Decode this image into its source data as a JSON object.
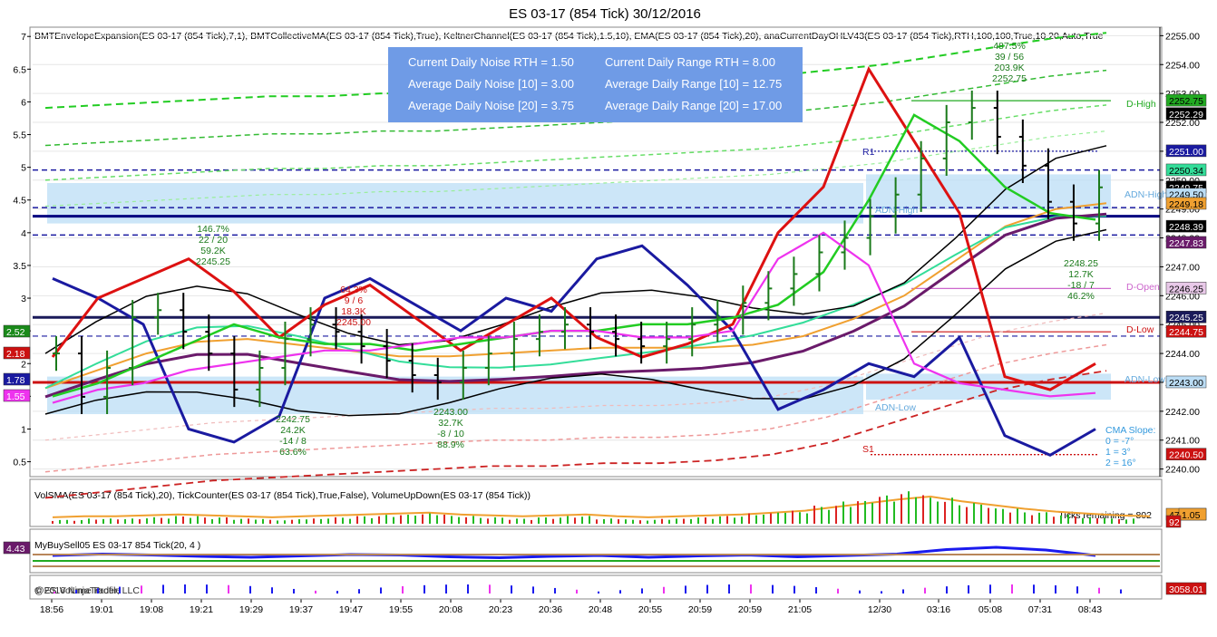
{
  "window_title": "ES 03-17 (854 Tick)  30/12/2016",
  "main_panel": {
    "indicator_header": "BMTEnvelopeExpansion(ES 03-17 (854 Tick),7,1), BMTCollectiveMA(ES 03-17 (854 Tick),True), KeltnerChannel(ES 03-17 (854 Tick),1.5,10), EMA(ES 03-17 (854 Tick),20), anaCurrentDayOHLV43(ES 03-17 (854 Tick),RTH,100,100,True,10,20,Auto,True",
    "noise_box": {
      "bg_color": "#6f9be6",
      "lines": [
        "Current Daily Noise RTH = 1.50",
        "Average Daily Noise [10] = 3.00",
        "Average Daily Noise [20] = 3.75",
        "Current Daily Range RTH = 8.00",
        "Average Daily Range [10] = 12.75",
        "Average Daily Range [20] = 17.00"
      ]
    },
    "annotations": [
      {
        "lines": [
          "146.7%",
          "22 / 20",
          "59.2K",
          "2245.25"
        ],
        "color": "#1a7a1a"
      },
      {
        "lines": [
          "64.3%",
          "9 / 6",
          "18.3K",
          "2245.00"
        ],
        "color": "#cc1111"
      },
      {
        "lines": [
          "2242.75",
          "24.2K",
          "-14 / 8",
          "63.6%"
        ],
        "color": "#1a7a1a"
      },
      {
        "lines": [
          "2243.00",
          "32.7K",
          "-8 / 10",
          "88.9%"
        ],
        "color": "#1a7a1a"
      },
      {
        "lines": [
          "487.5%",
          "39 / 56",
          "203.9K",
          "2252.75"
        ],
        "color": "#1a7a1a"
      },
      {
        "lines": [
          "2248.25",
          "12.7K",
          "-18 / 7",
          "46.2%"
        ],
        "color": "#1a7a1a"
      }
    ],
    "level_labels": [
      {
        "text": "R1",
        "color": "#1a1aa0"
      },
      {
        "text": "S1",
        "color": "#cc1111"
      },
      {
        "text": "D-High",
        "color": "#22aa22"
      },
      {
        "text": "D-Open",
        "color": "#cc66cc"
      },
      {
        "text": "D-Low",
        "color": "#cc1111"
      },
      {
        "text": "ADN-High",
        "color": "#66aadd"
      },
      {
        "text": "ADN-Low",
        "color": "#66aadd"
      },
      {
        "text": "ADN-High",
        "color": "#66aadd"
      },
      {
        "text": "ADN-Low",
        "color": "#66aadd"
      }
    ],
    "cma_slope": [
      "CMA Slope:",
      "0 = -7°",
      "1 = 3°",
      "2 = 16°"
    ],
    "cma_slope_color": "#3399dd",
    "left_axis_ticks": [
      "7",
      "6.5",
      "6",
      "5.5",
      "5",
      "4.5",
      "4",
      "3.5",
      "3",
      "2.5",
      "2",
      "1.5",
      "1",
      "0.5"
    ],
    "left_badges": [
      {
        "text": "2.52",
        "color": "#1a8a1a"
      },
      {
        "text": "2.18",
        "color": "#cc1111"
      },
      {
        "text": "1.78",
        "color": "#1a1aa0"
      },
      {
        "text": "1.55",
        "color": "#ee33ee"
      }
    ],
    "right_axis_ticks": [
      "2255.00",
      "2254.00",
      "2253.00",
      "2252.00",
      "2251.00",
      "2250.00",
      "2249.00",
      "2248.00",
      "2247.00",
      "2246.00",
      "2245.00",
      "2244.00",
      "2243.00",
      "2242.00",
      "2241.00",
      "2240.00"
    ],
    "right_badges": [
      {
        "text": "2252.75",
        "color": "#22aa22",
        "fg": "#000000"
      },
      {
        "text": "2252.29",
        "color": "#000000",
        "fg": "#ffffff"
      },
      {
        "text": "2251.00",
        "color": "#1a1aa0",
        "fg": "#ffffff"
      },
      {
        "text": "2250.34",
        "color": "#33dd99",
        "fg": "#000000"
      },
      {
        "text": "2249.75",
        "color": "#000000",
        "fg": "#ffffff"
      },
      {
        "text": "2249.50",
        "color": "#bbddf5",
        "fg": "#000000"
      },
      {
        "text": "2249.18",
        "color": "#f0a030",
        "fg": "#000000"
      },
      {
        "text": "2248.39",
        "color": "#000000",
        "fg": "#ffffff"
      },
      {
        "text": "2247.83",
        "color": "#6a1a6a",
        "fg": "#ffffff"
      },
      {
        "text": "2246.25",
        "color": "#e8c8e8",
        "fg": "#000000"
      },
      {
        "text": "2245.25",
        "color": "#1a1a5a",
        "fg": "#ffffff"
      },
      {
        "text": "2244.75",
        "color": "#cc1111",
        "fg": "#ffffff"
      },
      {
        "text": "2243.00",
        "color": "#bbddf5",
        "fg": "#000000"
      },
      {
        "text": "2240.50",
        "color": "#cc1111",
        "fg": "#ffffff"
      }
    ]
  },
  "volume_panel": {
    "header": "VolSMA(ES 03-17 (854 Tick),20), TickCounter(ES 03-17 (854 Tick),True,False), VolumeUpDown(ES 03-17 (854 Tick))",
    "ticks_remaining": "Ticks remaining = 802",
    "badges": [
      {
        "text": "471",
        "color": "#f0a030"
      },
      {
        "text": "1.05",
        "color": "#f0a030"
      },
      {
        "text": "92",
        "color": "#cc1111"
      }
    ]
  },
  "buysell_panel": {
    "header": "MyBuySell05 ES 03-17 854 Tick(20, 4 )",
    "left_badge": {
      "text": "4.43",
      "color": "#6a1a6a"
    }
  },
  "bottom_panel": {
    "header": "@ES Volume Profile",
    "copyright": "© 2016 NinjaTrader, LLC",
    "right_badge": {
      "text": "3058.01",
      "color": "#cc1111"
    }
  },
  "x_axis_ticks": [
    "18:56",
    "19:01",
    "19:08",
    "19:21",
    "19:29",
    "19:37",
    "19:47",
    "19:55",
    "20:08",
    "20:23",
    "20:36",
    "20:48",
    "20:55",
    "20:59",
    "20:59",
    "21:05",
    "12/30",
    "03:16",
    "05:08",
    "07:31",
    "08:43"
  ],
  "chart_data": {
    "type": "candlestick",
    "title": "ES 03-17 (854 Tick)  30/12/2016",
    "instrument": "ES 03-17 (854 Tick)",
    "date": "30/12/2016",
    "x_labels": [
      "18:56",
      "19:01",
      "19:08",
      "19:21",
      "19:29",
      "19:37",
      "19:47",
      "19:55",
      "20:08",
      "20:23",
      "20:36",
      "20:48",
      "20:55",
      "20:59",
      "20:59",
      "21:05",
      "12/30",
      "03:16",
      "05:08",
      "07:31",
      "08:43"
    ],
    "price_range": [
      2239.8,
      2255.2
    ],
    "left_axis_range": [
      0.3,
      7.1
    ],
    "levels": {
      "R1": 2251.0,
      "S1": 2240.5,
      "D-High": 2252.75,
      "D-Open": 2246.25,
      "D-Low": 2244.75,
      "ADN-High": 2249.5,
      "ADN-Low": 2243.0
    },
    "close_series": [
      2244.0,
      2242.5,
      2243.5,
      2245.25,
      2245.5,
      2244.75,
      2244.0,
      2242.75,
      2243.5,
      2244.5,
      2245.0,
      2244.75,
      2244.25,
      2243.75,
      2243.25,
      2243.0,
      2243.5,
      2244.0,
      2244.5,
      2244.75,
      2245.0,
      2244.75,
      2244.5,
      2244.25,
      2244.5,
      2245.0,
      2245.25,
      2245.75,
      2246.25,
      2246.75,
      2247.5,
      2248.0,
      2248.75,
      2249.5,
      2250.75,
      2252.0,
      2252.5,
      2251.5,
      2250.5,
      2249.25,
      2248.5,
      2249.75
    ],
    "envelope_upper": [
      2252.5,
      2252.6,
      2252.7,
      2252.8,
      2252.9,
      2252.9,
      2253.0,
      2253.0,
      2253.1,
      2253.2,
      2253.3,
      2253.4,
      2253.5,
      2253.6,
      2253.8,
      2254.0,
      2254.3,
      2254.6,
      2254.9,
      2255.1
    ],
    "envelope_lower": [
      2239.9,
      2240.1,
      2240.3,
      2240.5,
      2240.6,
      2240.7,
      2240.8,
      2240.9,
      2241.0,
      2241.0,
      2241.1,
      2241.1,
      2241.2,
      2241.4,
      2241.8,
      2242.4,
      2243.0,
      2243.6,
      2244.0,
      2244.3
    ],
    "ema20": [
      2242.8,
      2243.4,
      2244.0,
      2244.4,
      2244.5,
      2244.3,
      2244.1,
      2243.9,
      2243.9,
      2244.0,
      2244.1,
      2244.2,
      2244.2,
      2244.2,
      2244.3,
      2244.6,
      2245.2,
      2246.0,
      2247.2,
      2248.4,
      2249.0,
      2249.2
    ],
    "cma_slope": [
      -7,
      3,
      16
    ],
    "volume_series": [
      3,
      4,
      4,
      5,
      6,
      5,
      4,
      3,
      4,
      5,
      6,
      7,
      8,
      6,
      5,
      4,
      5,
      6,
      4,
      3,
      4,
      5,
      6,
      8,
      10,
      14,
      18,
      22,
      25,
      20,
      16,
      12,
      9,
      7,
      5,
      4
    ],
    "buysell_series": [
      0.2,
      0.5,
      0.3,
      0.0,
      -0.2,
      0.1,
      0.4,
      0.3,
      -0.1,
      -0.3,
      0.0,
      0.2,
      -0.2,
      0.1,
      0.3,
      -0.1,
      0.2,
      0.5,
      1.5,
      2.0,
      1.4,
      0.2
    ],
    "grid": true
  }
}
